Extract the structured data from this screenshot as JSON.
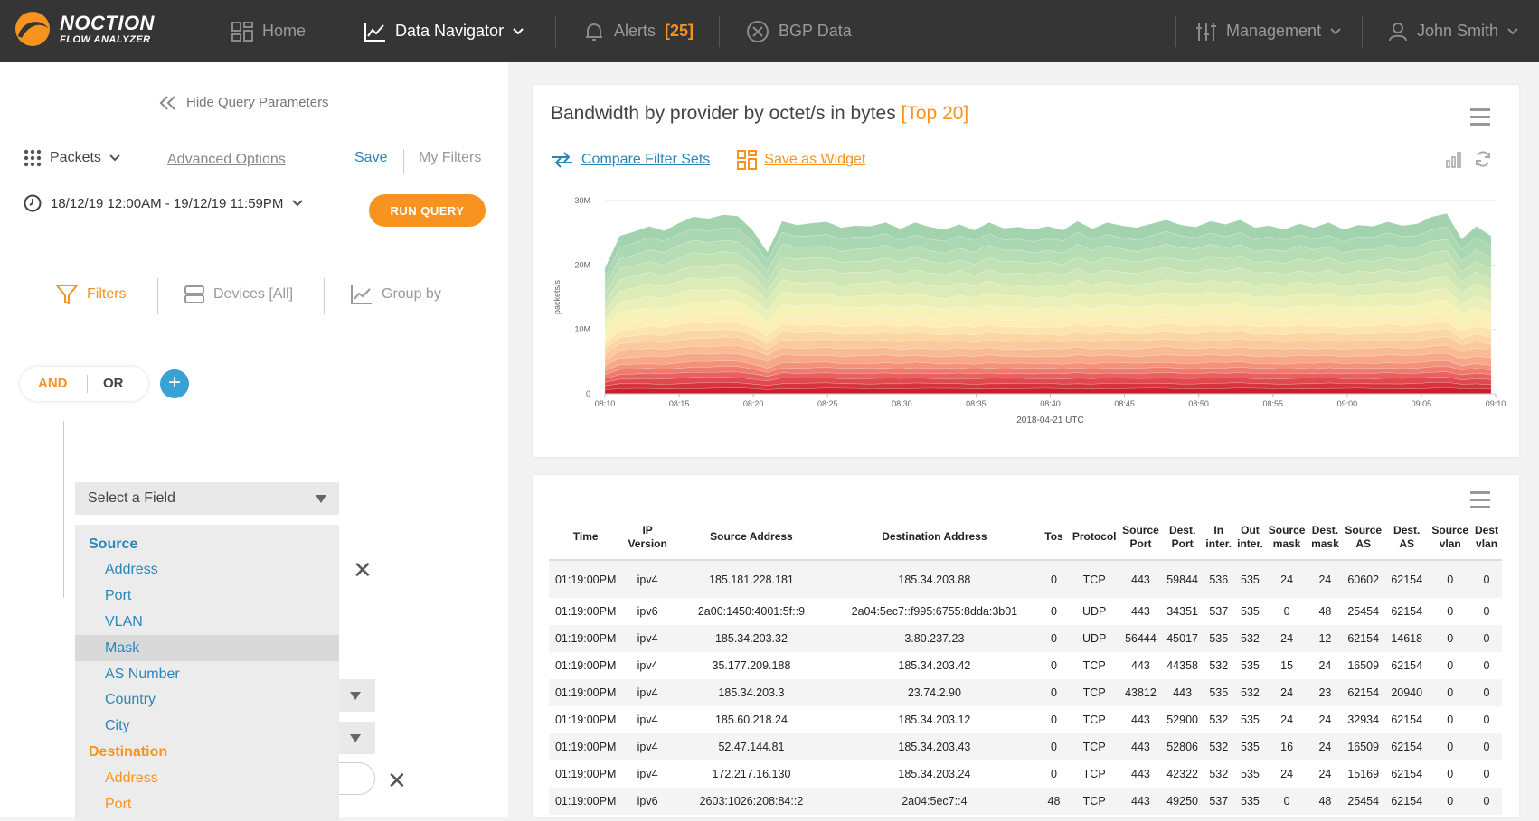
{
  "topbar": {
    "logo_name": "NOCTION",
    "logo_sub": "FLOW ANALYZER",
    "home": "Home",
    "data_navigator": "Data Navigator",
    "alerts": "Alerts",
    "alerts_count": "[25]",
    "bgp": "BGP Data",
    "management": "Management",
    "user": "John Smith"
  },
  "query": {
    "hide_label": "Hide Query Parameters",
    "packets": "Packets",
    "advanced": "Advanced Options",
    "save": "Save",
    "my_filters": "My Filters",
    "date_range": "18/12/19 12:00AM - 19/12/19 11:59PM",
    "run": "RUN QUERY",
    "tabs": {
      "filters": "Filters",
      "devices": "Devices [All]",
      "group_by": "Group by"
    },
    "and": "AND",
    "or": "OR",
    "plus": "+",
    "select_field": "Select a Field",
    "close_glyph": "✕",
    "dropdown": [
      {
        "label": "Source",
        "type": "head",
        "color": "#2a86b9"
      },
      {
        "label": "Address",
        "type": "item",
        "color": "#2a86b9"
      },
      {
        "label": "Port",
        "type": "item",
        "color": "#2a86b9"
      },
      {
        "label": "VLAN",
        "type": "item",
        "color": "#2a86b9"
      },
      {
        "label": "Mask",
        "type": "item",
        "color": "#2a86b9",
        "highlight": true
      },
      {
        "label": "AS Number",
        "type": "item",
        "color": "#2a86b9"
      },
      {
        "label": "Country",
        "type": "item",
        "color": "#2a86b9"
      },
      {
        "label": "City",
        "type": "item",
        "color": "#2a86b9"
      },
      {
        "label": "Destination",
        "type": "head",
        "color": "#f7931e"
      },
      {
        "label": "Address",
        "type": "item",
        "color": "#f7931e"
      },
      {
        "label": "Port",
        "type": "item",
        "color": "#f7931e"
      }
    ]
  },
  "chart_panel": {
    "title": "Bandwidth by provider by octet/s in bytes",
    "title_badge": "[Top 20]",
    "compare": "Compare Filter Sets",
    "save_widget": "Save as Widget"
  },
  "chart_data": {
    "type": "area",
    "stacked": true,
    "ylabel": "packets/s",
    "xlabel": "2018-04-21 UTC",
    "y_ticks": [
      "0",
      "10M",
      "20M",
      "30M"
    ],
    "ylim": [
      0,
      30000000
    ],
    "x_ticks": [
      "08:10",
      "08:15",
      "08:20",
      "08:25",
      "08:30",
      "08:35",
      "08:40",
      "08:45",
      "08:50",
      "08:55",
      "09:00",
      "09:05",
      "09:10"
    ],
    "xlim_minutes": [
      0,
      60
    ],
    "series_count": 20,
    "series_colors": [
      "#c71f2c",
      "#d8323d",
      "#e04a4f",
      "#e86060",
      "#ef7a6e",
      "#f3917b",
      "#f6a888",
      "#f8bb93",
      "#fac99e",
      "#fcd7a6",
      "#fde3ad",
      "#fdeeb5",
      "#f6f2b8",
      "#eaf0b8",
      "#dcecb7",
      "#cfe7b7",
      "#c2e2b6",
      "#b6ddb4",
      "#abd8b2",
      "#a2d3ae"
    ],
    "total_shape": [
      19.5,
      24.5,
      25.2,
      26.0,
      25.3,
      26.5,
      27.5,
      27.2,
      27.8,
      27.6,
      25.4,
      22.0,
      26.8,
      26.2,
      26.5,
      26.7,
      25.8,
      26.1,
      26.0,
      26.6,
      25.6,
      26.6,
      25.9,
      25.5,
      26.3,
      25.4,
      26.6,
      25.7,
      25.9,
      25.5,
      26.0,
      25.4,
      26.8,
      25.6,
      26.6,
      26.1,
      25.8,
      26.4,
      27.0,
      26.2,
      25.9,
      26.8,
      26.3,
      27.0,
      25.8,
      26.1,
      25.5,
      26.4,
      25.8,
      26.6,
      25.5,
      26.2,
      26.0,
      26.7,
      26.1,
      26.4,
      27.5,
      28.0,
      24.0,
      26.0,
      24.5
    ]
  },
  "table": {
    "headers": [
      "Time",
      "IP Version",
      "Source Address",
      "Destination Address",
      "Tos",
      "Protocol",
      "Source Port",
      "Dest. Port",
      "In inter.",
      "Out inter.",
      "Source mask",
      "Dest. mask",
      "Source AS",
      "Dest. AS",
      "Source vlan",
      "Dest vlan"
    ],
    "rows": [
      [
        "01:19:00PM",
        "ipv4",
        "185.181.228.181",
        "185.34.203.88",
        "0",
        "TCP",
        "443",
        "59844",
        "536",
        "535",
        "24",
        "24",
        "60602",
        "62154",
        "0",
        "0"
      ],
      [
        "01:19:00PM",
        "ipv6",
        "2a00:1450:4001:5f::9",
        "2a04:5ec7::f995:6755:8dda:3b01",
        "0",
        "UDP",
        "443",
        "34351",
        "537",
        "535",
        "0",
        "48",
        "25454",
        "62154",
        "0",
        "0"
      ],
      [
        "01:19:00PM",
        "ipv4",
        "185.34.203.32",
        "3.80.237.23",
        "0",
        "UDP",
        "56444",
        "45017",
        "535",
        "532",
        "24",
        "12",
        "62154",
        "14618",
        "0",
        "0"
      ],
      [
        "01:19:00PM",
        "ipv4",
        "35.177.209.188",
        "185.34.203.42",
        "0",
        "TCP",
        "443",
        "44358",
        "532",
        "535",
        "15",
        "24",
        "16509",
        "62154",
        "0",
        "0"
      ],
      [
        "01:19:00PM",
        "ipv4",
        "185.34.203.3",
        "23.74.2.90",
        "0",
        "TCP",
        "43812",
        "443",
        "535",
        "532",
        "24",
        "23",
        "62154",
        "20940",
        "0",
        "0"
      ],
      [
        "01:19:00PM",
        "ipv4",
        "185.60.218.24",
        "185.34.203.12",
        "0",
        "TCP",
        "443",
        "52900",
        "532",
        "535",
        "24",
        "24",
        "32934",
        "62154",
        "0",
        "0"
      ],
      [
        "01:19:00PM",
        "ipv4",
        "52.47.144.81",
        "185.34.203.43",
        "0",
        "TCP",
        "443",
        "52806",
        "532",
        "535",
        "16",
        "24",
        "16509",
        "62154",
        "0",
        "0"
      ],
      [
        "01:19:00PM",
        "ipv4",
        "172.217.16.130",
        "185.34.203.24",
        "0",
        "TCP",
        "443",
        "42322",
        "532",
        "535",
        "24",
        "24",
        "15169",
        "62154",
        "0",
        "0"
      ],
      [
        "01:19:00PM",
        "ipv6",
        "2603:1026:208:84::2",
        "2a04:5ec7::4",
        "48",
        "TCP",
        "443",
        "49250",
        "537",
        "535",
        "0",
        "48",
        "25454",
        "62154",
        "0",
        "0"
      ]
    ]
  }
}
